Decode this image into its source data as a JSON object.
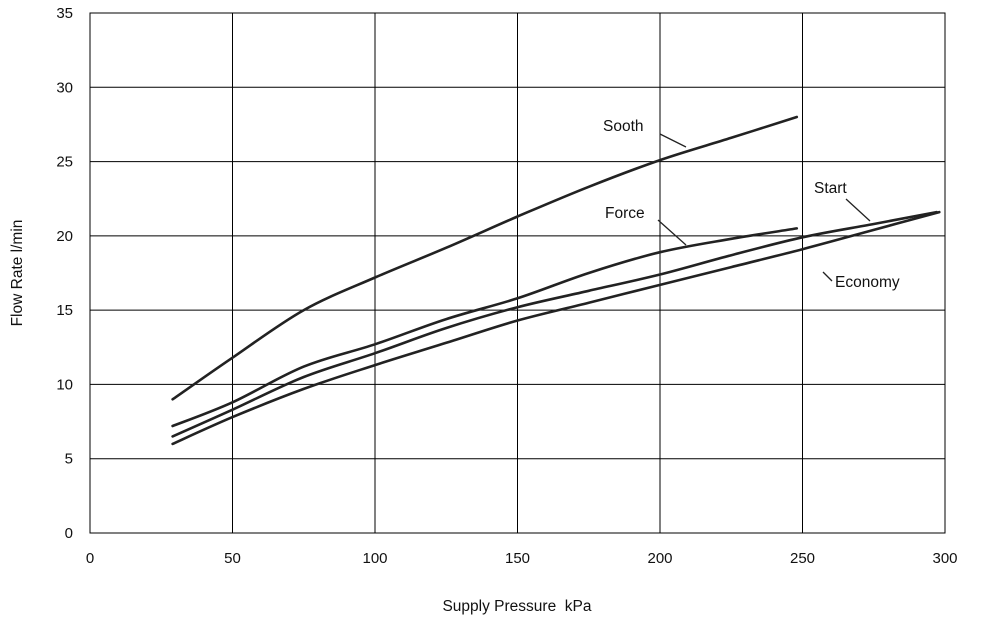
{
  "chart_data": {
    "type": "line",
    "xlabel": "Supply Pressure  kPa",
    "ylabel": "Flow Rate l/min",
    "xlim": [
      0,
      300
    ],
    "ylim": [
      0,
      35
    ],
    "xticks": [
      0,
      50,
      100,
      150,
      200,
      250,
      300
    ],
    "yticks": [
      0,
      5,
      10,
      15,
      20,
      25,
      30,
      35
    ],
    "xtick_labels": [
      "0",
      "50",
      "100",
      "150",
      "200",
      "250",
      "300"
    ],
    "ytick_labels": [
      "0",
      "5",
      "10",
      "15",
      "20",
      "25",
      "30",
      "35"
    ],
    "grid": true,
    "legend": "none (series labelled inline)",
    "series": [
      {
        "name": "Sooth",
        "x": [
          29,
          50,
          75,
          100,
          125,
          150,
          175,
          200,
          225,
          248
        ],
        "y": [
          9.0,
          11.8,
          15.0,
          17.2,
          19.2,
          21.3,
          23.3,
          25.1,
          26.6,
          28.0
        ]
      },
      {
        "name": "Force",
        "x": [
          29,
          50,
          75,
          100,
          125,
          150,
          175,
          200,
          225,
          248
        ],
        "y": [
          7.2,
          8.8,
          11.2,
          12.7,
          14.4,
          15.8,
          17.5,
          18.9,
          19.8,
          20.5
        ]
      },
      {
        "name": "Start",
        "x": [
          29,
          50,
          75,
          100,
          125,
          150,
          175,
          200,
          225,
          250,
          275,
          297
        ],
        "y": [
          6.5,
          8.3,
          10.5,
          12.1,
          13.8,
          15.2,
          16.3,
          17.4,
          18.7,
          19.9,
          20.8,
          21.6
        ]
      },
      {
        "name": "Economy",
        "x": [
          29,
          50,
          75,
          100,
          125,
          150,
          175,
          200,
          225,
          250,
          275,
          298
        ],
        "y": [
          6.0,
          7.8,
          9.7,
          11.3,
          12.8,
          14.3,
          15.5,
          16.7,
          17.9,
          19.1,
          20.4,
          21.6
        ]
      }
    ],
    "annotations": [
      {
        "text": "Sooth",
        "series": "Sooth"
      },
      {
        "text": "Force",
        "series": "Force"
      },
      {
        "text": "Start",
        "series": "Start"
      },
      {
        "text": "Economy",
        "series": "Economy"
      }
    ]
  }
}
